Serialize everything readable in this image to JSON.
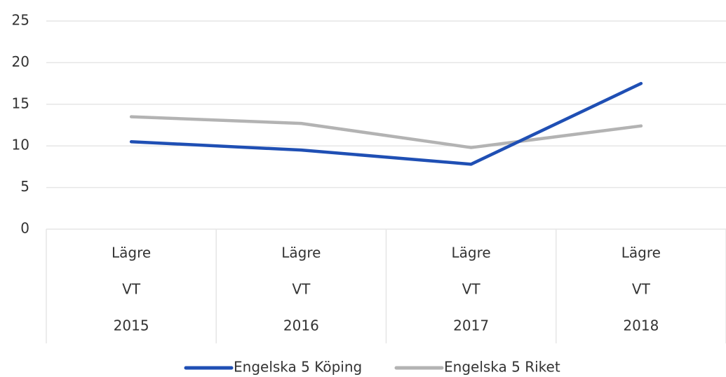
{
  "chart_data": {
    "type": "line",
    "categories": [
      [
        "Lägre",
        "VT",
        "2015"
      ],
      [
        "Lägre",
        "VT",
        "2016"
      ],
      [
        "Lägre",
        "VT",
        "2017"
      ],
      [
        "Lägre",
        "VT",
        "2018"
      ]
    ],
    "series": [
      {
        "name": "Engelska 5 Köping",
        "color": "#1f4fb4",
        "values": [
          10.5,
          9.5,
          7.8,
          17.5
        ]
      },
      {
        "name": "Engelska 5 Riket",
        "color": "#b3b3b3",
        "values": [
          13.5,
          12.7,
          9.8,
          12.4
        ]
      }
    ],
    "ylim": [
      0,
      25
    ],
    "yticks": [
      0,
      5,
      10,
      15,
      20,
      25
    ],
    "grid": true,
    "legend": "bottom"
  }
}
